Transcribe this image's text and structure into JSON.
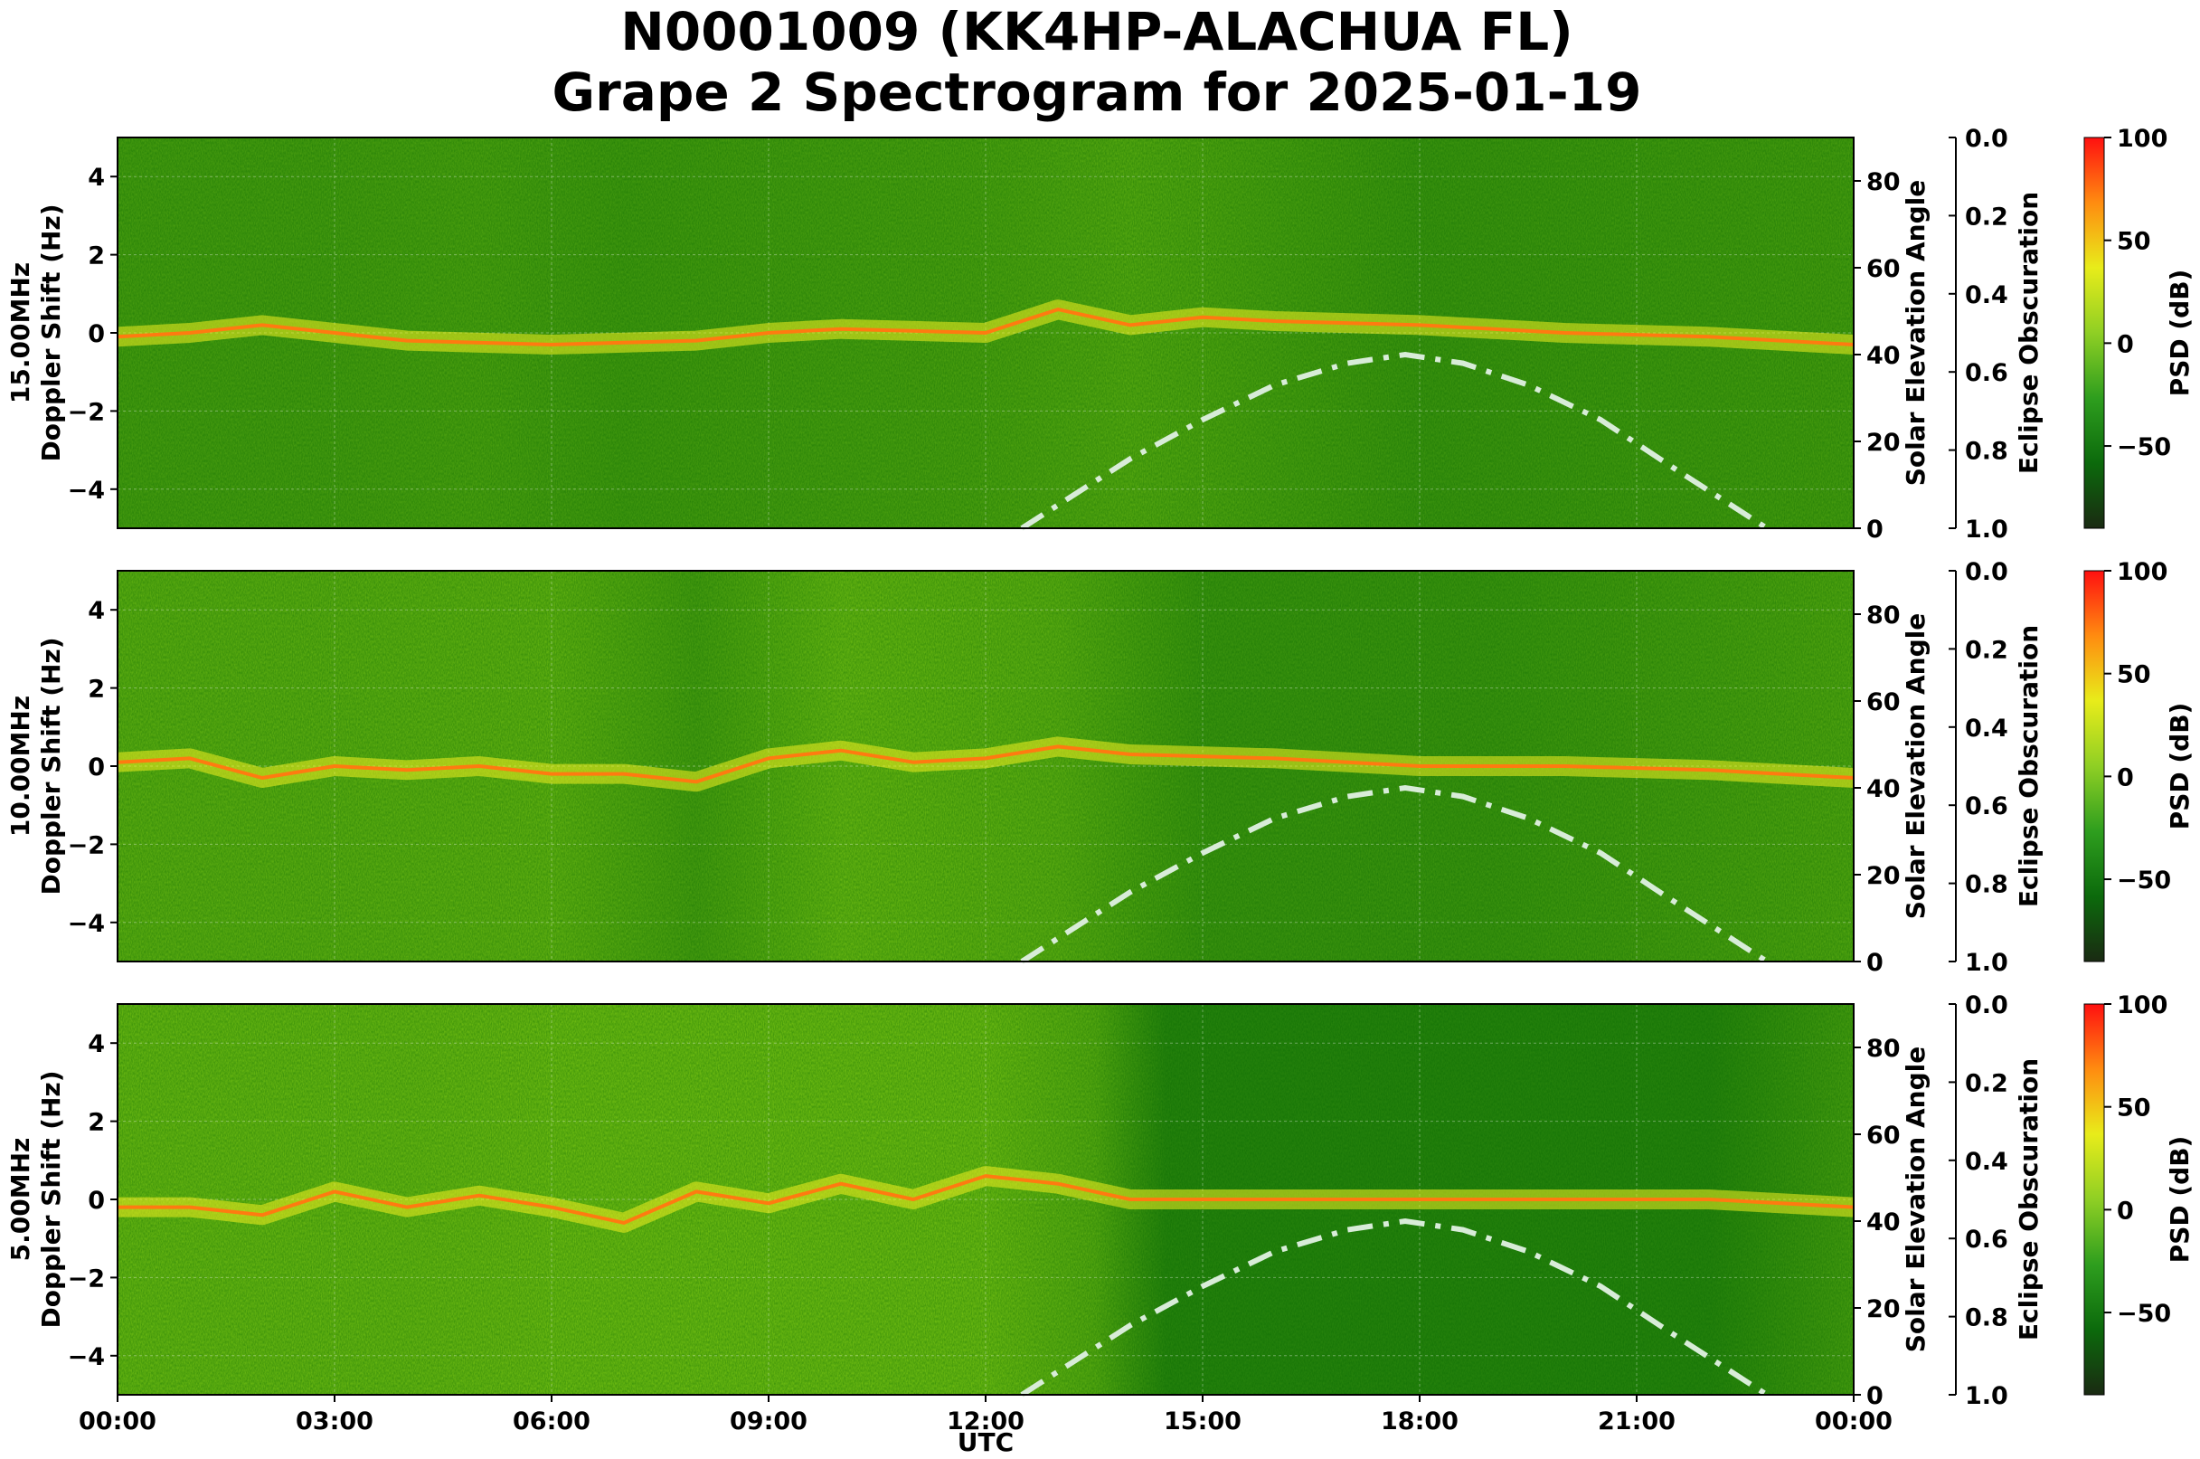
{
  "chart_data": {
    "type": "heatmap",
    "title_line1": "N0001009 (KK4HP-ALACHUA FL)",
    "title_line2": "Grape 2 Spectrogram for 2025-01-19",
    "xlabel": "UTC",
    "x_ticks": [
      "00:00",
      "03:00",
      "06:00",
      "09:00",
      "12:00",
      "15:00",
      "18:00",
      "21:00",
      "00:00"
    ],
    "xlim_hours": [
      0,
      24
    ],
    "y_left_label": "Doppler Shift (Hz)",
    "y_left_ticks": [
      "4",
      "2",
      "0",
      "−2",
      "−4"
    ],
    "y_left_tick_values": [
      4,
      2,
      0,
      -2,
      -4
    ],
    "ylim_left": [
      -5,
      5
    ],
    "y_right_label": "Solar Elevation Angle",
    "y_right_ticks": [
      "80",
      "60",
      "40",
      "20",
      "0"
    ],
    "y_right_tick_values": [
      80,
      60,
      40,
      20,
      0
    ],
    "ylim_right": [
      0,
      90
    ],
    "eclipse_label": "Eclipse Obscuration",
    "eclipse_ticks": [
      "0.0",
      "0.2",
      "0.4",
      "0.6",
      "0.8",
      "1.0"
    ],
    "eclipse_tick_values": [
      0,
      0.2,
      0.4,
      0.6,
      0.8,
      1.0
    ],
    "colorbar_label": "PSD (dB)",
    "colorbar_ticks": [
      "100",
      "50",
      "0",
      "−50"
    ],
    "colorbar_tick_values": [
      100,
      50,
      0,
      -50
    ],
    "colorbar_range": [
      -90,
      100
    ],
    "colorbar_colors": [
      "#1a2a12",
      "#0c6a0c",
      "#2e9e1e",
      "#8fcf24",
      "#e8ec1a",
      "#ff8c10",
      "#ff1010"
    ],
    "grid": true,
    "panels": [
      {
        "band": "15.00MHz",
        "solar_elevation": [
          [
            12.5,
            0
          ],
          [
            14,
            16
          ],
          [
            15,
            25
          ],
          [
            16,
            33
          ],
          [
            17,
            38
          ],
          [
            17.8,
            40
          ],
          [
            18.6,
            38
          ],
          [
            19.5,
            33
          ],
          [
            20.5,
            25
          ],
          [
            21.5,
            14
          ],
          [
            22.8,
            0
          ]
        ],
        "doppler_trace": [
          [
            0,
            -0.1
          ],
          [
            1,
            0.0
          ],
          [
            2,
            0.2
          ],
          [
            3,
            0.0
          ],
          [
            4,
            -0.2
          ],
          [
            6,
            -0.3
          ],
          [
            8,
            -0.2
          ],
          [
            9,
            0.0
          ],
          [
            10,
            0.1
          ],
          [
            12,
            0.0
          ],
          [
            13,
            0.6
          ],
          [
            14,
            0.2
          ],
          [
            15,
            0.4
          ],
          [
            16,
            0.3
          ],
          [
            18,
            0.2
          ],
          [
            20,
            0.0
          ],
          [
            22,
            -0.1
          ],
          [
            24,
            -0.3
          ]
        ],
        "doppler_strength": [
          [
            0,
            0.55
          ],
          [
            3,
            0.55
          ],
          [
            5,
            0.6
          ],
          [
            7,
            0.5
          ],
          [
            9,
            0.55
          ],
          [
            12,
            0.6
          ],
          [
            14,
            0.7
          ],
          [
            18,
            0.45
          ],
          [
            24,
            0.55
          ]
        ]
      },
      {
        "band": "10.00MHz",
        "solar_elevation": [
          [
            12.5,
            0
          ],
          [
            14,
            16
          ],
          [
            15,
            25
          ],
          [
            16,
            33
          ],
          [
            17,
            38
          ],
          [
            17.8,
            40
          ],
          [
            18.6,
            38
          ],
          [
            19.5,
            33
          ],
          [
            20.5,
            25
          ],
          [
            21.5,
            14
          ],
          [
            22.8,
            0
          ]
        ],
        "doppler_trace": [
          [
            0,
            0.1
          ],
          [
            1,
            0.2
          ],
          [
            2,
            -0.3
          ],
          [
            3,
            0.0
          ],
          [
            4,
            -0.1
          ],
          [
            5,
            0.0
          ],
          [
            6,
            -0.2
          ],
          [
            7,
            -0.2
          ],
          [
            8,
            -0.4
          ],
          [
            9,
            0.2
          ],
          [
            10,
            0.4
          ],
          [
            11,
            0.1
          ],
          [
            12,
            0.2
          ],
          [
            13,
            0.5
          ],
          [
            14,
            0.3
          ],
          [
            16,
            0.2
          ],
          [
            18,
            0.0
          ],
          [
            20,
            0.0
          ],
          [
            22,
            -0.1
          ],
          [
            24,
            -0.3
          ]
        ],
        "doppler_strength": [
          [
            0,
            0.75
          ],
          [
            3,
            0.75
          ],
          [
            6,
            0.8
          ],
          [
            8,
            0.55
          ],
          [
            10,
            0.85
          ],
          [
            13,
            0.75
          ],
          [
            15,
            0.45
          ],
          [
            19,
            0.45
          ],
          [
            24,
            0.65
          ]
        ]
      },
      {
        "band": "5.00MHz",
        "solar_elevation": [
          [
            12.5,
            0
          ],
          [
            14,
            16
          ],
          [
            15,
            25
          ],
          [
            16,
            33
          ],
          [
            17,
            38
          ],
          [
            17.8,
            40
          ],
          [
            18.6,
            38
          ],
          [
            19.5,
            33
          ],
          [
            20.5,
            25
          ],
          [
            21.5,
            14
          ],
          [
            22.8,
            0
          ]
        ],
        "doppler_trace": [
          [
            0,
            -0.2
          ],
          [
            1,
            -0.2
          ],
          [
            2,
            -0.4
          ],
          [
            3,
            0.2
          ],
          [
            4,
            -0.2
          ],
          [
            5,
            0.1
          ],
          [
            6,
            -0.2
          ],
          [
            7,
            -0.6
          ],
          [
            8,
            0.2
          ],
          [
            9,
            -0.1
          ],
          [
            10,
            0.4
          ],
          [
            11,
            0.0
          ],
          [
            12,
            0.6
          ],
          [
            13,
            0.4
          ],
          [
            14,
            0.0
          ],
          [
            16,
            0.0
          ],
          [
            20,
            0.0
          ],
          [
            22,
            0.0
          ],
          [
            24,
            -0.2
          ]
        ],
        "doppler_strength": [
          [
            0,
            0.85
          ],
          [
            4,
            0.85
          ],
          [
            6,
            0.9
          ],
          [
            9,
            0.9
          ],
          [
            12,
            0.9
          ],
          [
            13.5,
            0.7
          ],
          [
            14.5,
            0.25
          ],
          [
            22,
            0.25
          ],
          [
            24,
            0.55
          ]
        ]
      }
    ]
  }
}
